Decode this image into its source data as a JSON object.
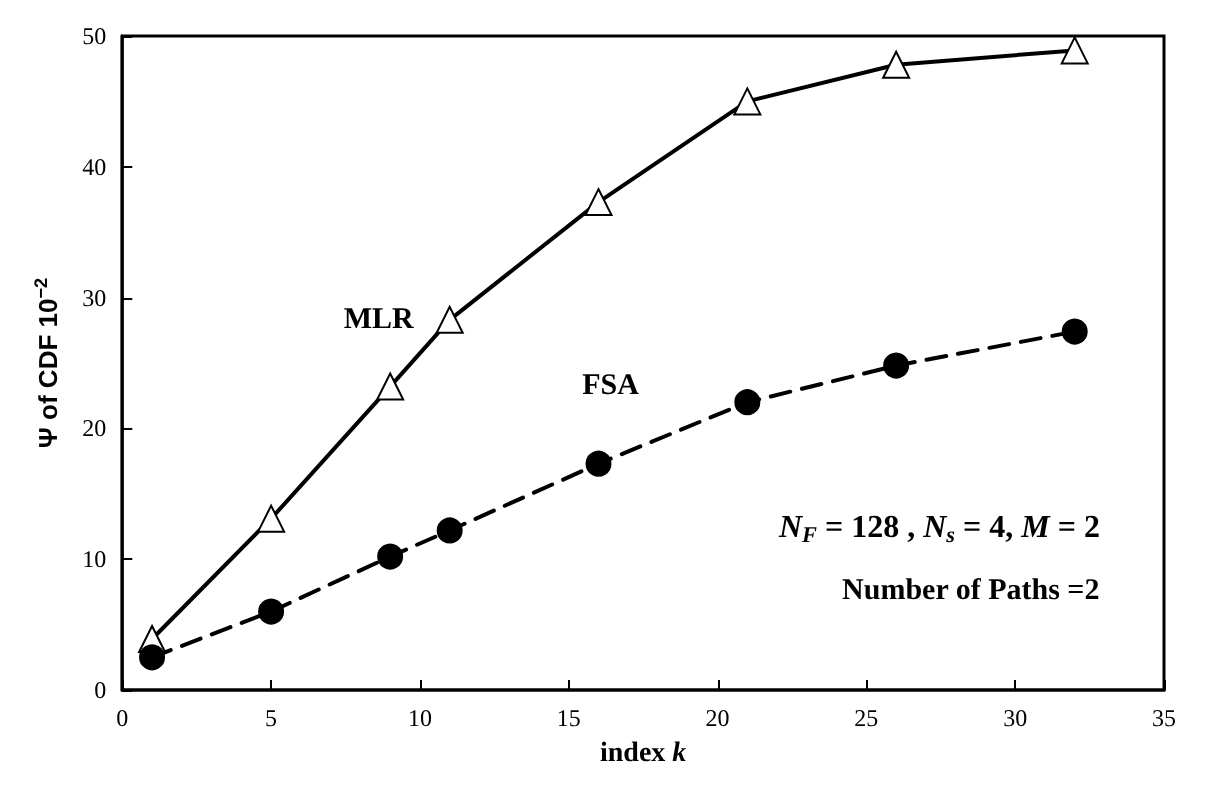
{
  "chart_data": {
    "type": "line",
    "xlabel": "index k",
    "ylabel": "Ψ of CDF 10$^{−2}$",
    "x": [
      1,
      5,
      9,
      11,
      16,
      21,
      26,
      32
    ],
    "series": [
      {
        "name": "MLR",
        "color": "#000000",
        "marker": "triangle",
        "line_style": "solid",
        "values": [
          3.9,
          13.1,
          23.2,
          28.3,
          37.3,
          45,
          47.8,
          48.9
        ]
      },
      {
        "name": "FSA",
        "color": "#000000",
        "marker": "circle",
        "line_style": "dashed",
        "values": [
          2.5,
          6,
          10.2,
          12.2,
          17.3,
          22,
          24.8,
          27.4
        ]
      }
    ],
    "xlim": [
      0,
      35
    ],
    "xticks": [
      0,
      5,
      10,
      15,
      20,
      25,
      30,
      35
    ],
    "ylim": [
      0,
      50
    ],
    "yticks": [
      0,
      10,
      20,
      30,
      40,
      50
    ],
    "grid": false,
    "legend": false,
    "annotations": [
      "N$_{F}$ = 128 , N$_{s}$ = 4, M = 2",
      "Number of Paths =2"
    ]
  }
}
